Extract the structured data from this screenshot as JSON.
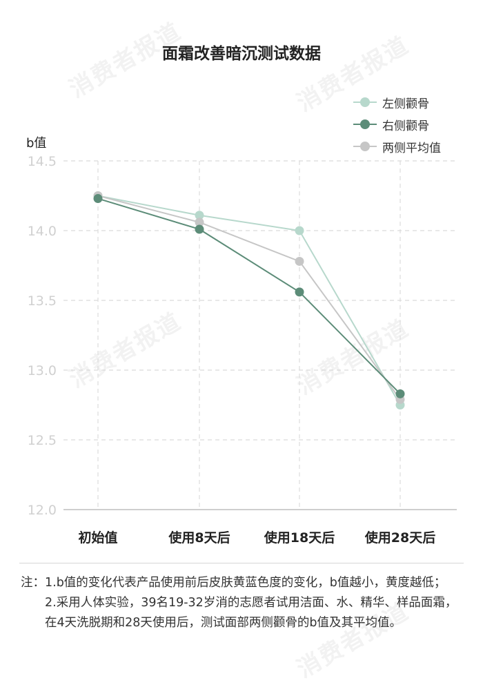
{
  "chart_data": {
    "type": "line",
    "title": "面霜改善暗沉测试数据",
    "ylabel": "b值",
    "categories": [
      "初始值",
      "使用8天后",
      "使用18天后",
      "使用28天后"
    ],
    "ylim": [
      12.0,
      14.5
    ],
    "yticks": [
      "12.0",
      "12.5",
      "13.0",
      "13.5",
      "14.0",
      "14.5"
    ],
    "grid": true,
    "legend_position": "top-right",
    "series": [
      {
        "name": "左侧颧骨",
        "values": [
          14.25,
          14.11,
          14.0,
          12.75
        ],
        "color": "#b7d8cc"
      },
      {
        "name": "右侧颧骨",
        "values": [
          14.23,
          14.01,
          13.56,
          12.83
        ],
        "color": "#5c8c78"
      },
      {
        "name": "两侧平均值",
        "values": [
          14.25,
          14.06,
          13.78,
          12.79
        ],
        "color": "#c6c6c6"
      }
    ]
  },
  "watermark": "消费者报道",
  "notes": {
    "prefix": "注：",
    "items": [
      "1.b值的变化代表产品使用前后皮肤黄蓝色度的变化，b值越小，黄度越低；",
      "2.采用人体实验，39名19-32岁消的志愿者试用洁面、水、精华、样品面霜，在4天洗脱期和28天使用后，测试面部两侧颧骨的b值及其平均值。"
    ]
  }
}
